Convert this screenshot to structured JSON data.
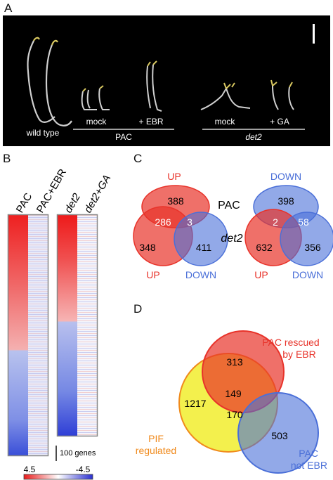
{
  "panels": {
    "a": "A",
    "b": "B",
    "c": "C",
    "d": "D"
  },
  "photo": {
    "wild_type": "wild type",
    "mock1": "mock",
    "ebr": "+ EBR",
    "pac": "PAC",
    "mock2": "mock",
    "ga": "+ GA",
    "det2": "det2"
  },
  "heatmap": {
    "col_pac": "PAC",
    "col_pac_ebr": "PAC+EBR",
    "col_det2": "det2",
    "col_det2_ga": "det2+GA",
    "scale_bar": "100 genes",
    "legend_max": "4.5",
    "legend_min": "-4.5"
  },
  "venn_c": {
    "pac": "PAC",
    "det2": "det2",
    "left": {
      "up_top": "UP",
      "up_bottom": "UP",
      "down": "DOWN",
      "n1": "388",
      "n2": "286",
      "n3": "3",
      "n4": "348",
      "n5": "411"
    },
    "right": {
      "down_top": "DOWN",
      "up": "UP",
      "down_bottom": "DOWN",
      "n1": "398",
      "n2": "2",
      "n3": "58",
      "n4": "632",
      "n5": "356"
    }
  },
  "venn_d": {
    "pac_rescued": "PAC rescued",
    "by_ebr": "by EBR",
    "pif": "PIF",
    "regulated": "regulated",
    "pac2": "PAC",
    "not_ebr": "not EBR",
    "n313": "313",
    "n149": "149",
    "n1217": "1217",
    "n170": "170",
    "n503": "503"
  },
  "colors": {
    "red": "#e8332a",
    "blue": "#4a6fd8",
    "yellow": "#f2ee3a",
    "orange": "#f08a1c"
  }
}
